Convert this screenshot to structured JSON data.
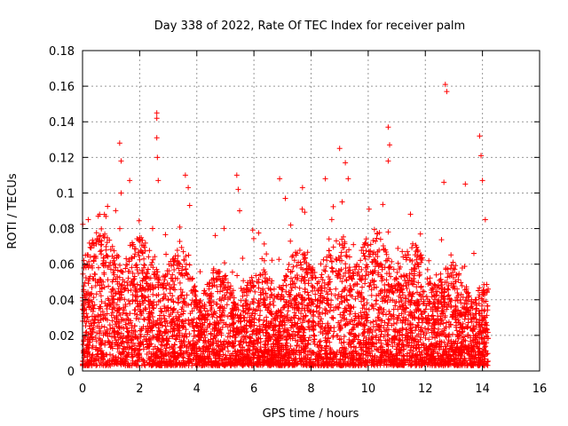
{
  "chart_data": {
    "type": "scatter",
    "title": "Day 338 of 2022, Rate Of TEC Index for receiver palm",
    "xlabel": "GPS time / hours",
    "ylabel": "ROTI / TECUs",
    "xlim": [
      0,
      16
    ],
    "ylim": [
      0,
      0.18
    ],
    "xticks": [
      0,
      2,
      4,
      6,
      8,
      10,
      12,
      14,
      16
    ],
    "xtick_labels": [
      "0",
      "2",
      "4",
      "6",
      "8",
      "10",
      "12",
      "14",
      "16"
    ],
    "yticks": [
      0,
      0.02,
      0.04,
      0.06,
      0.08,
      0.1,
      0.12,
      0.14,
      0.16,
      0.18
    ],
    "ytick_labels": [
      "0",
      "0.02",
      "0.04",
      "0.06",
      "0.08",
      "0.1",
      "0.12",
      "0.14",
      "0.16",
      "0.18"
    ],
    "grid": true,
    "marker": "+",
    "color": "#ff0000",
    "time_range_hours": [
      0,
      14.2
    ],
    "density_note": "dense scatter mostly between 0 and 0.06; sampled highlights listed below",
    "highlight_points": [
      {
        "x": 0.05,
        "y": 0.062
      },
      {
        "x": 0.1,
        "y": 0.065
      },
      {
        "x": 0.2,
        "y": 0.085
      },
      {
        "x": 0.55,
        "y": 0.087
      },
      {
        "x": 1.3,
        "y": 0.128
      },
      {
        "x": 1.35,
        "y": 0.118
      },
      {
        "x": 1.35,
        "y": 0.1
      },
      {
        "x": 1.65,
        "y": 0.107
      },
      {
        "x": 2.6,
        "y": 0.145
      },
      {
        "x": 2.6,
        "y": 0.142
      },
      {
        "x": 2.6,
        "y": 0.131
      },
      {
        "x": 2.62,
        "y": 0.12
      },
      {
        "x": 2.65,
        "y": 0.107
      },
      {
        "x": 3.6,
        "y": 0.11
      },
      {
        "x": 3.7,
        "y": 0.103
      },
      {
        "x": 3.75,
        "y": 0.093
      },
      {
        "x": 5.4,
        "y": 0.11
      },
      {
        "x": 5.45,
        "y": 0.102
      },
      {
        "x": 5.5,
        "y": 0.09
      },
      {
        "x": 6.9,
        "y": 0.108
      },
      {
        "x": 7.1,
        "y": 0.097
      },
      {
        "x": 7.7,
        "y": 0.103
      },
      {
        "x": 8.5,
        "y": 0.108
      },
      {
        "x": 9.0,
        "y": 0.125
      },
      {
        "x": 9.2,
        "y": 0.117
      },
      {
        "x": 9.3,
        "y": 0.108
      },
      {
        "x": 10.7,
        "y": 0.137
      },
      {
        "x": 10.75,
        "y": 0.127
      },
      {
        "x": 10.7,
        "y": 0.118
      },
      {
        "x": 12.7,
        "y": 0.161
      },
      {
        "x": 12.75,
        "y": 0.157
      },
      {
        "x": 12.65,
        "y": 0.106
      },
      {
        "x": 13.4,
        "y": 0.105
      },
      {
        "x": 13.9,
        "y": 0.132
      },
      {
        "x": 13.95,
        "y": 0.121
      },
      {
        "x": 14.0,
        "y": 0.107
      },
      {
        "x": 14.1,
        "y": 0.085
      }
    ]
  }
}
